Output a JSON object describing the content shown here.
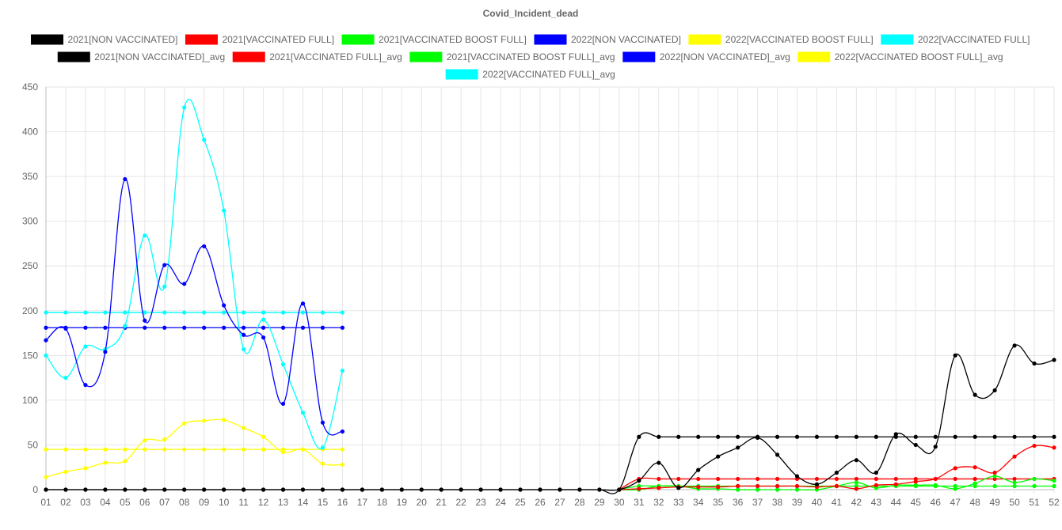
{
  "chart_data": {
    "type": "line",
    "title": "Covid_Incident_dead",
    "xlabel": "",
    "ylabel": "",
    "ylim": [
      0,
      450
    ],
    "y_ticks": [
      0,
      50,
      100,
      150,
      200,
      250,
      300,
      350,
      400,
      450
    ],
    "grid": true,
    "legend_position": "top",
    "categories": [
      "01",
      "02",
      "03",
      "04",
      "05",
      "06",
      "07",
      "08",
      "09",
      "10",
      "11",
      "12",
      "13",
      "14",
      "15",
      "16",
      "17",
      "18",
      "19",
      "20",
      "21",
      "22",
      "23",
      "24",
      "25",
      "26",
      "27",
      "28",
      "29",
      "30",
      "31",
      "32",
      "33",
      "34",
      "35",
      "36",
      "37",
      "38",
      "39",
      "40",
      "41",
      "42",
      "43",
      "44",
      "45",
      "46",
      "47",
      "48",
      "49",
      "50",
      "51",
      "52"
    ],
    "series": [
      {
        "name": "2021[NON VACCINATED]",
        "color": "#000000",
        "values": [
          0,
          0,
          0,
          0,
          0,
          0,
          0,
          0,
          0,
          0,
          0,
          0,
          0,
          0,
          0,
          0,
          0,
          0,
          0,
          0,
          0,
          0,
          0,
          0,
          0,
          0,
          0,
          0,
          0,
          0,
          10,
          30,
          2,
          22,
          37,
          47,
          58,
          39,
          15,
          6,
          19,
          33,
          19,
          62,
          50,
          48,
          150,
          106,
          111,
          161,
          141,
          145
        ]
      },
      {
        "name": "2021[VACCINATED FULL]",
        "color": "#ff0000",
        "values": [
          null,
          null,
          null,
          null,
          null,
          null,
          null,
          null,
          null,
          null,
          null,
          null,
          null,
          null,
          null,
          null,
          null,
          null,
          null,
          null,
          null,
          null,
          null,
          null,
          null,
          null,
          null,
          null,
          null,
          0,
          1,
          2,
          3,
          3,
          3,
          4,
          4,
          4,
          4,
          3,
          4,
          1,
          5,
          6,
          9,
          12,
          24,
          25,
          19,
          37,
          49,
          47
        ]
      },
      {
        "name": "2021[VACCINATED BOOST FULL]",
        "color": "#00ff00",
        "values": [
          null,
          null,
          null,
          null,
          null,
          null,
          null,
          null,
          null,
          null,
          null,
          null,
          null,
          null,
          null,
          null,
          null,
          null,
          null,
          null,
          null,
          null,
          null,
          null,
          null,
          null,
          null,
          null,
          null,
          0,
          0,
          4,
          4,
          1,
          1,
          0,
          0,
          0,
          0,
          0,
          4,
          8,
          2,
          5,
          5,
          5,
          1,
          7,
          15,
          8,
          12,
          10
        ]
      },
      {
        "name": "2022[NON VACCINATED]",
        "color": "#0000ff",
        "values": [
          167,
          180,
          117,
          154,
          347,
          189,
          251,
          230,
          272,
          206,
          173,
          170,
          96,
          208,
          75,
          65,
          null,
          null,
          null,
          null,
          null,
          null,
          null,
          null,
          null,
          null,
          null,
          null,
          null,
          null,
          null,
          null,
          null,
          null,
          null,
          null,
          null,
          null,
          null,
          null,
          null,
          null,
          null,
          null,
          null,
          null,
          null,
          null,
          null,
          null,
          null,
          null
        ]
      },
      {
        "name": "2022[VACCINATED BOOST FULL]",
        "color": "#ffff00",
        "values": [
          14,
          20,
          24,
          30,
          32,
          55,
          56,
          74,
          77,
          78,
          69,
          59,
          42,
          45,
          29,
          28,
          null,
          null,
          null,
          null,
          null,
          null,
          null,
          null,
          null,
          null,
          null,
          null,
          null,
          null,
          null,
          null,
          null,
          null,
          null,
          null,
          null,
          null,
          null,
          null,
          null,
          null,
          null,
          null,
          null,
          null,
          null,
          null,
          null,
          null,
          null,
          null
        ]
      },
      {
        "name": "2022[VACCINATED FULL]",
        "color": "#00ffff",
        "values": [
          150,
          125,
          160,
          157,
          183,
          284,
          227,
          427,
          391,
          312,
          157,
          190,
          140,
          86,
          47,
          133,
          null,
          null,
          null,
          null,
          null,
          null,
          null,
          null,
          null,
          null,
          null,
          null,
          null,
          null,
          null,
          null,
          null,
          null,
          null,
          null,
          null,
          null,
          null,
          null,
          null,
          null,
          null,
          null,
          null,
          null,
          null,
          null,
          null,
          null,
          null,
          null
        ]
      },
      {
        "name": "2021[NON VACCINATED]_avg",
        "color": "#000000",
        "values": [
          0,
          0,
          0,
          0,
          0,
          0,
          0,
          0,
          0,
          0,
          0,
          0,
          0,
          0,
          0,
          0,
          0,
          0,
          0,
          0,
          0,
          0,
          0,
          0,
          0,
          0,
          0,
          0,
          0,
          0,
          59,
          59,
          59,
          59,
          59,
          59,
          59,
          59,
          59,
          59,
          59,
          59,
          59,
          59,
          59,
          59,
          59,
          59,
          59,
          59,
          59,
          59
        ]
      },
      {
        "name": "2021[VACCINATED FULL]_avg",
        "color": "#ff0000",
        "values": [
          null,
          null,
          null,
          null,
          null,
          null,
          null,
          null,
          null,
          null,
          null,
          null,
          null,
          null,
          null,
          null,
          null,
          null,
          null,
          null,
          null,
          null,
          null,
          null,
          null,
          null,
          null,
          null,
          null,
          0,
          12,
          12,
          12,
          12,
          12,
          12,
          12,
          12,
          12,
          12,
          12,
          12,
          12,
          12,
          12,
          12,
          12,
          12,
          12,
          12,
          12,
          12
        ]
      },
      {
        "name": "2021[VACCINATED BOOST FULL]_avg",
        "color": "#00ff00",
        "values": [
          null,
          null,
          null,
          null,
          null,
          null,
          null,
          null,
          null,
          null,
          null,
          null,
          null,
          null,
          null,
          null,
          null,
          null,
          null,
          null,
          null,
          null,
          null,
          null,
          null,
          null,
          null,
          null,
          null,
          0,
          4,
          4,
          4,
          4,
          4,
          4,
          4,
          4,
          4,
          4,
          4,
          4,
          4,
          4,
          4,
          4,
          4,
          4,
          4,
          4,
          4,
          4
        ]
      },
      {
        "name": "2022[NON VACCINATED]_avg",
        "color": "#0000ff",
        "values": [
          181,
          181,
          181,
          181,
          181,
          181,
          181,
          181,
          181,
          181,
          181,
          181,
          181,
          181,
          181,
          181,
          null,
          null,
          null,
          null,
          null,
          null,
          null,
          null,
          null,
          null,
          null,
          null,
          null,
          null,
          null,
          null,
          null,
          null,
          null,
          null,
          null,
          null,
          null,
          null,
          null,
          null,
          null,
          null,
          null,
          null,
          null,
          null,
          null,
          null,
          null,
          null
        ]
      },
      {
        "name": "2022[VACCINATED BOOST FULL]_avg",
        "color": "#ffff00",
        "values": [
          45,
          45,
          45,
          45,
          45,
          45,
          45,
          45,
          45,
          45,
          45,
          45,
          45,
          45,
          45,
          45,
          null,
          null,
          null,
          null,
          null,
          null,
          null,
          null,
          null,
          null,
          null,
          null,
          null,
          null,
          null,
          null,
          null,
          null,
          null,
          null,
          null,
          null,
          null,
          null,
          null,
          null,
          null,
          null,
          null,
          null,
          null,
          null,
          null,
          null,
          null,
          null
        ]
      },
      {
        "name": "2022[VACCINATED FULL]_avg",
        "color": "#00ffff",
        "values": [
          198,
          198,
          198,
          198,
          198,
          198,
          198,
          198,
          198,
          198,
          198,
          198,
          198,
          198,
          198,
          198,
          null,
          null,
          null,
          null,
          null,
          null,
          null,
          null,
          null,
          null,
          null,
          null,
          null,
          null,
          null,
          null,
          null,
          null,
          null,
          null,
          null,
          null,
          null,
          null,
          null,
          null,
          null,
          null,
          null,
          null,
          null,
          null,
          null,
          null,
          null,
          null
        ]
      }
    ]
  }
}
